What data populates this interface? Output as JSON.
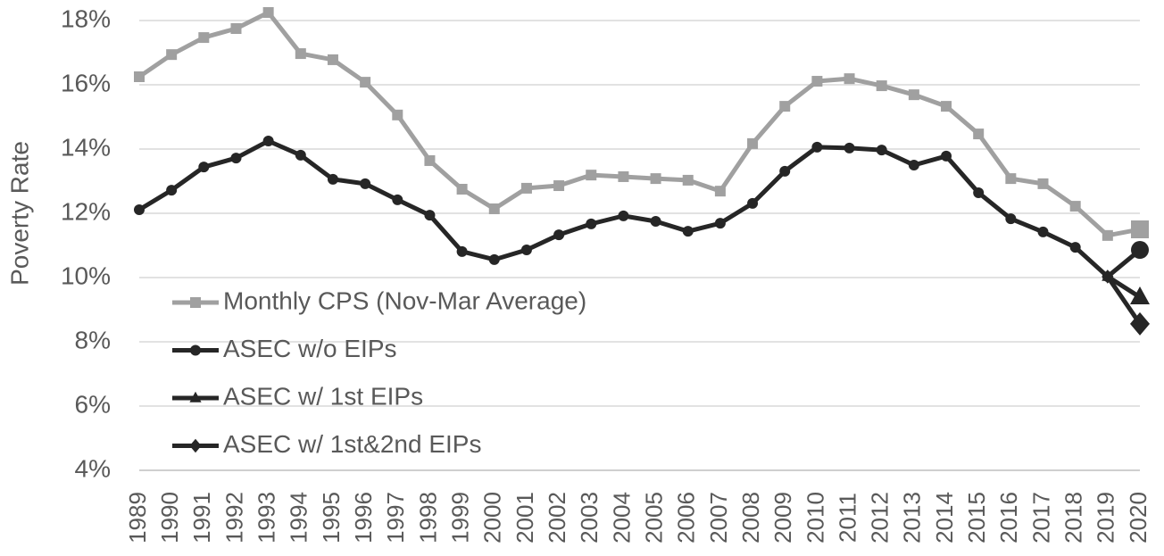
{
  "chart_data": {
    "type": "line",
    "y_label": "Poverty Rate",
    "categories": [
      "1989",
      "1990",
      "1991",
      "1992",
      "1993",
      "1994",
      "1995",
      "1996",
      "1997",
      "1998",
      "1999",
      "2000",
      "2001",
      "2002",
      "2003",
      "2004",
      "2005",
      "2006",
      "2007",
      "2008",
      "2009",
      "2010",
      "2011",
      "2012",
      "2013",
      "2014",
      "2015",
      "2016",
      "2017",
      "2018",
      "2019",
      "2020"
    ],
    "series": [
      {
        "name": "Monthly CPS (Nov-Mar Average)",
        "color": "#a0a0a0",
        "marker": "square",
        "values": [
          16.25,
          16.94,
          17.47,
          17.75,
          18.25,
          16.97,
          16.78,
          16.08,
          15.06,
          13.64,
          12.75,
          12.14,
          12.78,
          12.86,
          13.19,
          13.14,
          13.08,
          13.03,
          12.69,
          14.17,
          15.33,
          16.11,
          16.19,
          15.97,
          15.69,
          15.33,
          14.47,
          13.08,
          12.92,
          12.22,
          11.31,
          11.5
        ]
      },
      {
        "name": "ASEC w/o EIPs",
        "color": "#262626",
        "marker": "circle",
        "values": [
          12.11,
          12.72,
          13.44,
          13.72,
          14.25,
          13.81,
          13.06,
          12.92,
          12.42,
          11.94,
          10.81,
          10.56,
          10.86,
          11.33,
          11.67,
          11.92,
          11.75,
          11.44,
          11.69,
          12.31,
          13.31,
          14.06,
          14.03,
          13.97,
          13.5,
          13.78,
          12.64,
          11.83,
          11.42,
          10.94,
          10.03,
          10.86
        ]
      },
      {
        "name": "ASEC w/ 1st EIPs",
        "color": "#262626",
        "marker": "triangle",
        "values": [
          null,
          null,
          null,
          null,
          null,
          null,
          null,
          null,
          null,
          null,
          null,
          null,
          null,
          null,
          null,
          null,
          null,
          null,
          null,
          null,
          null,
          null,
          null,
          null,
          null,
          null,
          null,
          null,
          null,
          null,
          10.03,
          9.39
        ]
      },
      {
        "name": "ASEC w/ 1st&2nd EIPs",
        "color": "#262626",
        "marker": "diamond",
        "values": [
          null,
          null,
          null,
          null,
          null,
          null,
          null,
          null,
          null,
          null,
          null,
          null,
          null,
          null,
          null,
          null,
          null,
          null,
          null,
          null,
          null,
          null,
          null,
          null,
          null,
          null,
          null,
          null,
          null,
          null,
          10.03,
          8.56
        ]
      }
    ],
    "ylim": [
      4,
      18
    ],
    "yticks": [
      {
        "value": 4,
        "label": "4%"
      },
      {
        "value": 6,
        "label": "6%"
      },
      {
        "value": 8,
        "label": "8%"
      },
      {
        "value": 10,
        "label": "10%"
      },
      {
        "value": 12,
        "label": "12%"
      },
      {
        "value": 14,
        "label": "14%"
      },
      {
        "value": 16,
        "label": "16%"
      },
      {
        "value": 18,
        "label": "18%"
      }
    ],
    "grid": true,
    "legend": "center-left"
  }
}
